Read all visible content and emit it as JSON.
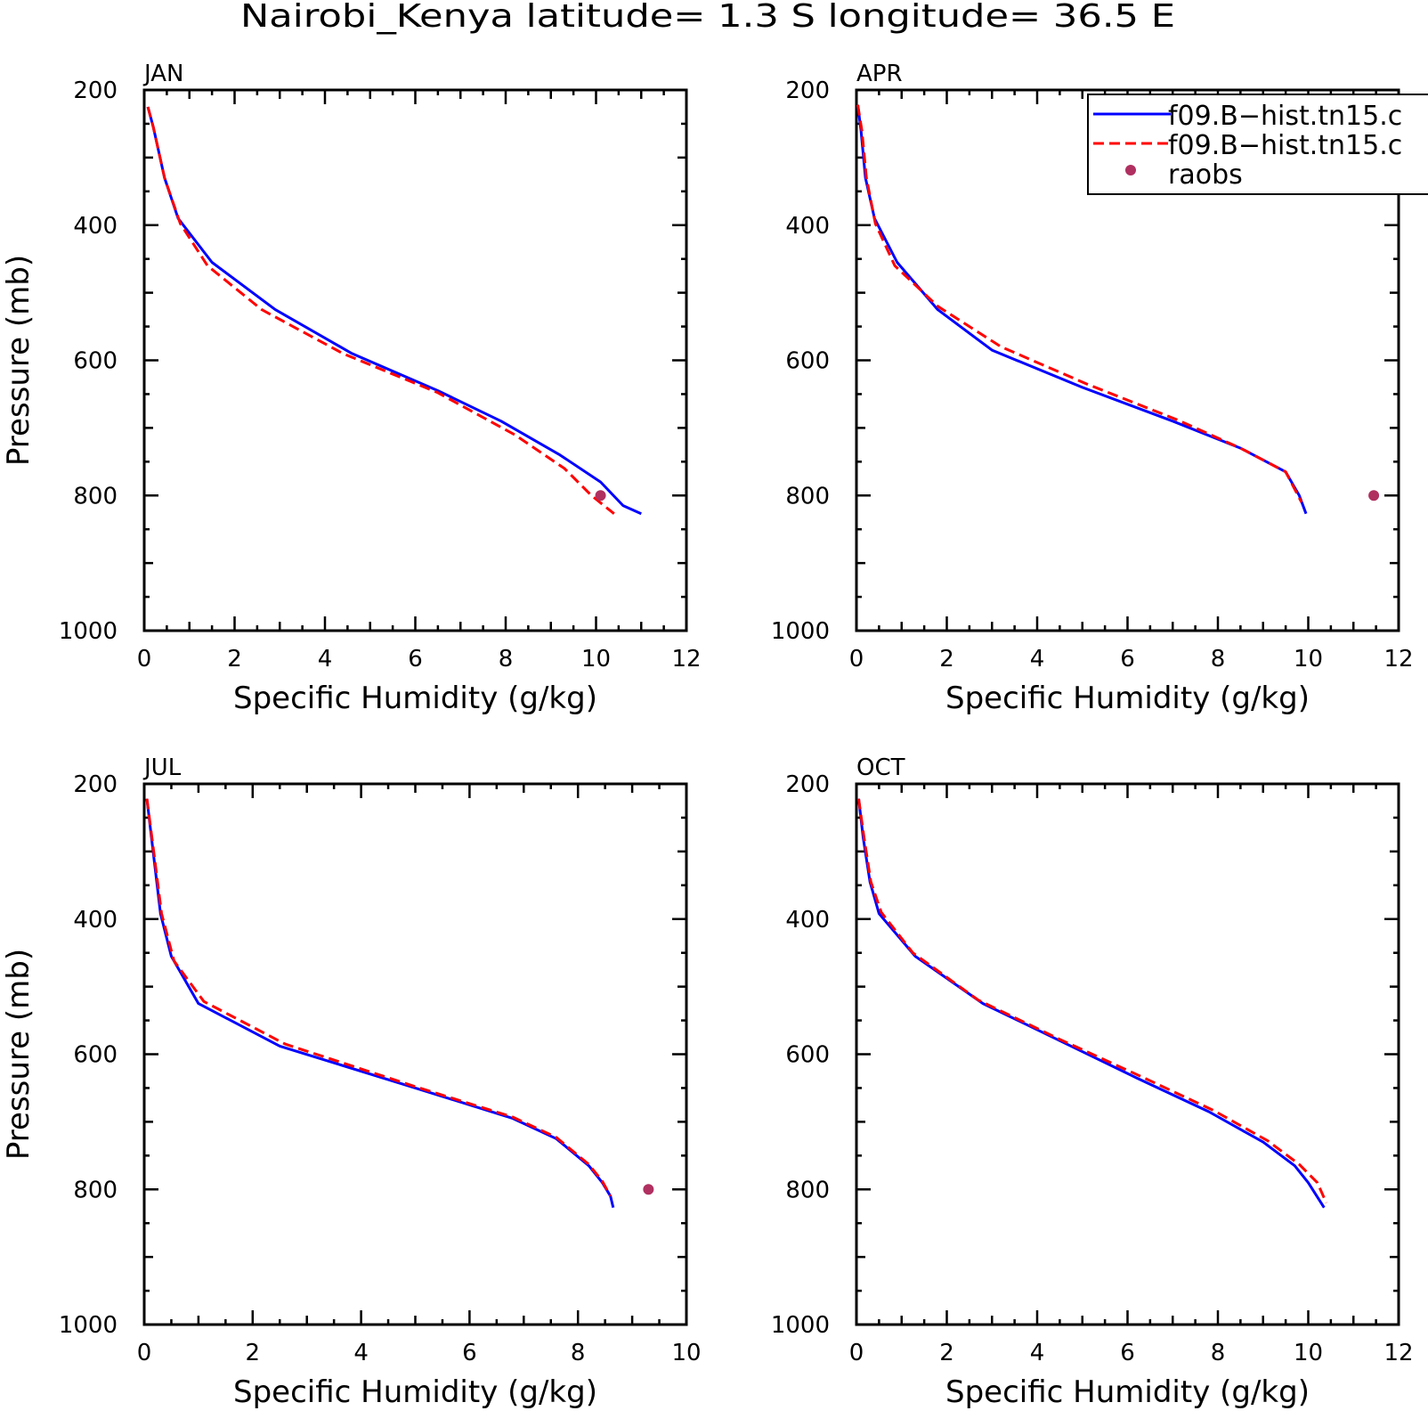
{
  "title": "Nairobi_Kenya  latitude= 1.3 S longitude= 36.5 E",
  "legend": {
    "entries": [
      {
        "label": "f09.B−hist.tn15.c",
        "style": "solid",
        "color": "#0000ff"
      },
      {
        "label": "f09.B−hist.tn15.c",
        "style": "dashed",
        "color": "#ff0000"
      },
      {
        "label": "raobs",
        "style": "marker",
        "color": "#b03060"
      }
    ]
  },
  "chart_data": [
    {
      "type": "line",
      "panel": "JAN",
      "xlabel": "Specific Humidity (g/kg)",
      "ylabel": "Pressure (mb)",
      "xlim": [
        0,
        12
      ],
      "ylim": [
        1000,
        200
      ],
      "xticks": [
        0,
        2,
        4,
        6,
        8,
        10,
        12
      ],
      "yticks": [
        200,
        400,
        600,
        800,
        1000
      ],
      "series": [
        {
          "style": "solid",
          "color": "#0000ff",
          "x": [
            0.08,
            0.2,
            0.45,
            0.75,
            1.5,
            2.9,
            4.6,
            6.5,
            7.9,
            9.2,
            10.1,
            10.6,
            11.0
          ],
          "y": [
            225,
            255,
            330,
            390,
            455,
            525,
            590,
            645,
            690,
            740,
            780,
            815,
            827
          ]
        },
        {
          "style": "dashed",
          "color": "#ff0000",
          "x": [
            0.08,
            0.2,
            0.45,
            0.8,
            1.4,
            2.6,
            4.4,
            6.5,
            8.2,
            9.3,
            9.9,
            10.4
          ],
          "y": [
            225,
            255,
            330,
            398,
            460,
            525,
            590,
            648,
            710,
            760,
            800,
            827
          ]
        },
        {
          "style": "marker",
          "color": "#b03060",
          "x": [
            10.1
          ],
          "y": [
            800
          ]
        }
      ]
    },
    {
      "type": "line",
      "panel": "APR",
      "xlabel": "Specific Humidity (g/kg)",
      "ylabel": "",
      "xlim": [
        0,
        12
      ],
      "ylim": [
        1000,
        200
      ],
      "xticks": [
        0,
        2,
        4,
        6,
        8,
        10,
        12
      ],
      "yticks": [
        200,
        400,
        600,
        800,
        1000
      ],
      "series": [
        {
          "style": "solid",
          "color": "#0000ff",
          "x": [
            0.03,
            0.1,
            0.2,
            0.4,
            0.9,
            1.8,
            3.0,
            5.0,
            7.0,
            8.5,
            9.5,
            9.8,
            9.95
          ],
          "y": [
            222,
            260,
            330,
            390,
            455,
            525,
            585,
            640,
            690,
            730,
            765,
            800,
            827
          ]
        },
        {
          "style": "dashed",
          "color": "#ff0000",
          "x": [
            0.03,
            0.12,
            0.22,
            0.42,
            0.85,
            1.8,
            3.2,
            5.1,
            7.1,
            8.5,
            9.5,
            9.85
          ],
          "y": [
            222,
            260,
            330,
            398,
            460,
            520,
            580,
            635,
            688,
            730,
            765,
            810
          ]
        },
        {
          "style": "marker",
          "color": "#b03060",
          "x": [
            11.45
          ],
          "y": [
            800
          ]
        }
      ]
    },
    {
      "type": "line",
      "panel": "JUL",
      "xlabel": "Specific Humidity (g/kg)",
      "ylabel": "Pressure (mb)",
      "xlim": [
        0,
        10
      ],
      "ylim": [
        1000,
        200
      ],
      "xticks": [
        0,
        2,
        4,
        6,
        8,
        10
      ],
      "yticks": [
        200,
        400,
        600,
        800,
        1000
      ],
      "series": [
        {
          "style": "solid",
          "color": "#0000ff",
          "x": [
            0.05,
            0.15,
            0.3,
            0.5,
            1.0,
            2.5,
            5.0,
            6.8,
            7.6,
            8.2,
            8.45,
            8.6,
            8.65
          ],
          "y": [
            222,
            290,
            392,
            455,
            525,
            588,
            650,
            695,
            725,
            765,
            790,
            810,
            827
          ]
        },
        {
          "style": "dashed",
          "color": "#ff0000",
          "x": [
            0.05,
            0.16,
            0.32,
            0.55,
            1.1,
            2.6,
            5.0,
            6.8,
            7.6,
            8.2,
            8.45,
            8.6
          ],
          "y": [
            222,
            290,
            392,
            462,
            522,
            585,
            648,
            693,
            723,
            763,
            788,
            810
          ]
        },
        {
          "style": "marker",
          "color": "#b03060",
          "x": [
            9.3
          ],
          "y": [
            800
          ]
        }
      ]
    },
    {
      "type": "line",
      "panel": "OCT",
      "xlabel": "Specific Humidity (g/kg)",
      "ylabel": "",
      "xlim": [
        0,
        12
      ],
      "ylim": [
        1000,
        200
      ],
      "xticks": [
        0,
        2,
        4,
        6,
        8,
        10,
        12
      ],
      "yticks": [
        200,
        400,
        600,
        800,
        1000
      ],
      "series": [
        {
          "style": "solid",
          "color": "#0000ff",
          "x": [
            0.05,
            0.15,
            0.3,
            0.5,
            1.3,
            2.8,
            4.5,
            6.2,
            7.8,
            9.0,
            9.7,
            10.0,
            10.35
          ],
          "y": [
            222,
            280,
            345,
            392,
            455,
            525,
            580,
            635,
            685,
            730,
            765,
            790,
            827
          ]
        },
        {
          "style": "dashed",
          "color": "#ff0000",
          "x": [
            0.05,
            0.17,
            0.32,
            0.55,
            1.25,
            2.7,
            4.5,
            6.3,
            7.9,
            9.1,
            9.8,
            10.2,
            10.4
          ],
          "y": [
            222,
            280,
            345,
            390,
            450,
            520,
            578,
            633,
            683,
            728,
            763,
            790,
            820
          ]
        }
      ]
    }
  ]
}
